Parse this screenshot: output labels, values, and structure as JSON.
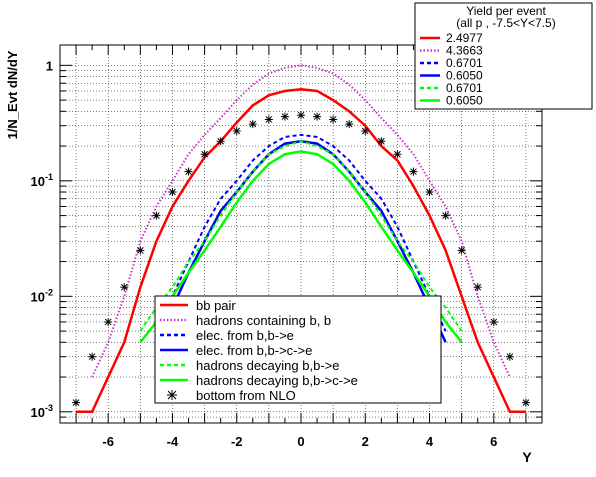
{
  "chart_data": {
    "type": "line",
    "xlabel": "Y",
    "ylabel": "1/N_Evt dN/dY",
    "ylog": true,
    "xlim": [
      -7.5,
      7.5
    ],
    "ylim": [
      0.0008,
      1.5
    ],
    "grid": true,
    "x_ticks": [
      -6,
      -4,
      -2,
      0,
      2,
      4,
      6
    ],
    "y_ticks": [
      {
        "value": 0.001,
        "base": "10",
        "exp": "-3"
      },
      {
        "value": 0.01,
        "base": "10",
        "exp": "-2"
      },
      {
        "value": 0.1,
        "base": "10",
        "exp": "-1"
      },
      {
        "value": 1,
        "base": "1",
        "exp": ""
      }
    ],
    "yield_box": {
      "title": "Yield per event",
      "subtitle": "(all p , -7.5<Y<7.5)",
      "entries": [
        {
          "value": "2.4977",
          "color": "#ff0000"
        },
        {
          "value": "4.3663",
          "color": "#cc33cc"
        },
        {
          "value": "0.6701",
          "color": "#0000ff"
        },
        {
          "value": "0.6050",
          "color": "#0000ff"
        },
        {
          "value": "0.6701",
          "color": "#00ff00"
        },
        {
          "value": "0.6050",
          "color": "#00ff00"
        }
      ]
    },
    "legend": {
      "placement": "bottom-center",
      "entries": [
        {
          "label": "bb pair",
          "color": "#ff0000",
          "style": "solid"
        },
        {
          "label": "hadrons containing b, b",
          "color": "#cc33cc",
          "style": "dotted"
        },
        {
          "label": "elec. from b,b->e",
          "color": "#0000ff",
          "style": "dashed"
        },
        {
          "label": "elec. from b,b->c->e",
          "color": "#0000ff",
          "style": "solid"
        },
        {
          "label": "hadrons decaying b,b->e",
          "color": "#00ff00",
          "style": "dashed"
        },
        {
          "label": "hadrons decaying b,b->c->e",
          "color": "#00ff00",
          "style": "solid"
        },
        {
          "label": "bottom from NLO",
          "color": "#000000",
          "style": "marker"
        }
      ]
    },
    "series": [
      {
        "color": "#ff0000",
        "style": "solid",
        "x": [
          -7.0,
          -6.5,
          -6.0,
          -5.5,
          -5.0,
          -4.5,
          -4.0,
          -3.5,
          -3.0,
          -2.5,
          -2.0,
          -1.5,
          -1.0,
          -0.5,
          0.0,
          0.5,
          1.0,
          1.5,
          2.0,
          2.5,
          3.0,
          3.5,
          4.0,
          4.5,
          5.0,
          5.5,
          6.0,
          6.5,
          7.0
        ],
        "y": [
          0.001,
          0.001,
          0.002,
          0.004,
          0.012,
          0.03,
          0.06,
          0.1,
          0.16,
          0.22,
          0.32,
          0.45,
          0.55,
          0.6,
          0.62,
          0.6,
          0.5,
          0.4,
          0.3,
          0.2,
          0.15,
          0.09,
          0.05,
          0.025,
          0.01,
          0.004,
          0.002,
          0.001,
          0.001
        ]
      },
      {
        "color": "#cc33cc",
        "style": "dotted",
        "x": [
          -6.5,
          -6.0,
          -5.5,
          -5.0,
          -4.5,
          -4.0,
          -3.5,
          -3.0,
          -2.5,
          -2.0,
          -1.5,
          -1.0,
          -0.5,
          0.0,
          0.5,
          1.0,
          1.5,
          2.0,
          2.5,
          3.0,
          3.5,
          4.0,
          4.5,
          5.0,
          5.5,
          6.0,
          6.5
        ],
        "y": [
          0.002,
          0.004,
          0.01,
          0.03,
          0.06,
          0.1,
          0.17,
          0.25,
          0.35,
          0.5,
          0.68,
          0.85,
          0.95,
          1.0,
          0.95,
          0.85,
          0.68,
          0.5,
          0.35,
          0.25,
          0.17,
          0.1,
          0.06,
          0.03,
          0.01,
          0.004,
          0.002
        ]
      },
      {
        "color": "#0000ff",
        "style": "dashed",
        "x": [
          -4.5,
          -4.0,
          -3.5,
          -3.0,
          -2.5,
          -2.0,
          -1.5,
          -1.0,
          -0.5,
          0.0,
          0.5,
          1.0,
          1.5,
          2.0,
          2.5,
          3.0,
          3.5,
          4.0,
          4.5
        ],
        "y": [
          0.005,
          0.01,
          0.02,
          0.04,
          0.07,
          0.1,
          0.15,
          0.2,
          0.24,
          0.25,
          0.24,
          0.2,
          0.15,
          0.1,
          0.07,
          0.04,
          0.02,
          0.01,
          0.005
        ]
      },
      {
        "color": "#0000ff",
        "style": "solid",
        "x": [
          -4.5,
          -4.0,
          -3.5,
          -3.0,
          -2.5,
          -2.0,
          -1.5,
          -1.0,
          -0.5,
          0.0,
          0.5,
          1.0,
          1.5,
          2.0,
          2.5,
          3.0,
          3.5,
          4.0,
          4.5
        ],
        "y": [
          0.004,
          0.008,
          0.016,
          0.03,
          0.055,
          0.08,
          0.12,
          0.17,
          0.21,
          0.22,
          0.21,
          0.17,
          0.12,
          0.08,
          0.055,
          0.03,
          0.016,
          0.008,
          0.004
        ]
      },
      {
        "color": "#00ff00",
        "style": "dashed",
        "x": [
          -5.0,
          -4.5,
          -4.0,
          -3.5,
          -3.0,
          -2.5,
          -2.0,
          -1.5,
          -1.0,
          -0.5,
          0.0,
          0.5,
          1.0,
          1.5,
          2.0,
          2.5,
          3.0,
          3.5,
          4.0,
          4.5,
          5.0
        ],
        "y": [
          0.005,
          0.008,
          0.012,
          0.02,
          0.03,
          0.05,
          0.08,
          0.12,
          0.17,
          0.2,
          0.22,
          0.2,
          0.17,
          0.12,
          0.08,
          0.05,
          0.03,
          0.02,
          0.012,
          0.008,
          0.005
        ]
      },
      {
        "color": "#00ff00",
        "style": "solid",
        "x": [
          -5.0,
          -4.5,
          -4.0,
          -3.5,
          -3.0,
          -2.5,
          -2.0,
          -1.5,
          -1.0,
          -0.5,
          0.0,
          0.5,
          1.0,
          1.5,
          2.0,
          2.5,
          3.0,
          3.5,
          4.0,
          4.5,
          5.0
        ],
        "y": [
          0.004,
          0.006,
          0.01,
          0.016,
          0.025,
          0.04,
          0.065,
          0.1,
          0.14,
          0.17,
          0.18,
          0.17,
          0.14,
          0.1,
          0.065,
          0.04,
          0.025,
          0.016,
          0.01,
          0.006,
          0.004
        ]
      },
      {
        "color": "#000000",
        "style": "marker",
        "x": [
          -7.0,
          -6.5,
          -6.0,
          -5.5,
          -5.0,
          -4.5,
          -4.0,
          -3.5,
          -3.0,
          -2.5,
          -2.0,
          -1.5,
          -1.0,
          -0.5,
          0.0,
          0.5,
          1.0,
          1.5,
          2.0,
          2.5,
          3.0,
          3.5,
          4.0,
          4.5,
          5.0,
          5.5,
          6.0,
          6.5,
          7.0
        ],
        "y": [
          0.0012,
          0.003,
          0.006,
          0.012,
          0.025,
          0.05,
          0.08,
          0.12,
          0.17,
          0.22,
          0.27,
          0.31,
          0.34,
          0.36,
          0.37,
          0.36,
          0.34,
          0.31,
          0.27,
          0.22,
          0.17,
          0.12,
          0.08,
          0.05,
          0.025,
          0.012,
          0.006,
          0.003,
          0.0012
        ]
      }
    ]
  }
}
